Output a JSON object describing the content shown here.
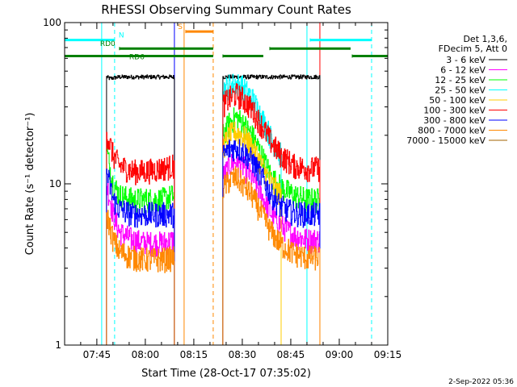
{
  "chart_data": {
    "type": "line",
    "title": "RHESSI Observing Summary Count Rates",
    "xlabel": "Start Time (28-Oct-17 07:35:02)",
    "ylabel": "Count Rate (s⁻¹ detector⁻¹)",
    "yscale": "log",
    "xlim": [
      "07:35:02",
      "09:15:00"
    ],
    "ylim": [
      1,
      100
    ],
    "x_ticks": [
      "07:45",
      "08:00",
      "08:15",
      "08:30",
      "08:45",
      "09:00",
      "09:15"
    ],
    "y_ticks": [
      "1",
      "10",
      "100"
    ],
    "grid": false,
    "legend_position": "top-right",
    "legend_header": [
      "Det 1,3,6,",
      "FDecim 5, Att 0"
    ],
    "footer_date": "2-Sep-2022 05:36",
    "series": [
      {
        "name": "3 - 6 keV",
        "color": "#000000",
        "segments": [
          {
            "x": [
              "07:48:00",
              "07:49:00",
              "07:52:00",
              "07:56:00",
              "08:00:00",
              "08:05:00",
              "08:09:00"
            ],
            "y": [
              46,
              45,
              46,
              46,
              46,
              46,
              46
            ]
          },
          {
            "x": [
              "08:24:00",
              "08:27:00",
              "08:30:00",
              "08:35:00",
              "08:40:00",
              "08:45:00",
              "08:50:00",
              "08:54:00"
            ],
            "y": [
              46,
              46,
              46,
              46,
              46,
              46,
              46,
              46
            ]
          }
        ]
      },
      {
        "name": "6 - 12 keV",
        "color": "#ff00ff",
        "segments": [
          {
            "x": [
              "07:48:00",
              "07:50:00",
              "07:52:00",
              "07:56:00",
              "08:00:00",
              "08:05:00",
              "08:09:00"
            ],
            "y": [
              10,
              6.5,
              5,
              4.5,
              4.3,
              4.3,
              4.5
            ]
          },
          {
            "x": [
              "08:24:00",
              "08:26:00",
              "08:28:00",
              "08:30:00",
              "08:33:00",
              "08:36:00",
              "08:39:00",
              "08:42:00",
              "08:46:00",
              "08:50:00",
              "08:54:00"
            ],
            "y": [
              11,
              13,
              14,
              13,
              11,
              8.5,
              6.5,
              5.5,
              4.8,
              4.5,
              4.5
            ]
          }
        ]
      },
      {
        "name": "12 - 25 keV",
        "color": "#00ff00",
        "segments": [
          {
            "x": [
              "07:48:00",
              "07:50:00",
              "07:52:00",
              "07:56:00",
              "08:00:00",
              "08:05:00",
              "08:09:00"
            ],
            "y": [
              16,
              10,
              8.5,
              8,
              8,
              8,
              8.5
            ]
          },
          {
            "x": [
              "08:24:00",
              "08:26:00",
              "08:28:00",
              "08:30:00",
              "08:33:00",
              "08:36:00",
              "08:39:00",
              "08:42:00",
              "08:46:00",
              "08:50:00",
              "08:54:00"
            ],
            "y": [
              20,
              24,
              26,
              24,
              20,
              15,
              11,
              9.5,
              8.5,
              8,
              8
            ]
          }
        ]
      },
      {
        "name": "25 - 50 keV",
        "color": "#00ffff",
        "segments": [
          {
            "x": [
              "08:24:00",
              "08:26:00",
              "08:28:00",
              "08:30:00",
              "08:33:00",
              "08:36:00",
              "08:39:00",
              "08:42:00"
            ],
            "y": [
              38,
              41,
              42,
              40,
              34,
              26,
              19,
              15
            ]
          }
        ]
      },
      {
        "name": "50 - 100 keV",
        "color": "#ffcc00",
        "segments": [
          {
            "x": [
              "08:24:00",
              "08:26:00",
              "08:28:00",
              "08:30:00",
              "08:33:00",
              "08:36:00",
              "08:39:00",
              "08:42:00"
            ],
            "y": [
              17,
              20,
              21,
              20,
              17,
              13,
              10,
              8.5
            ]
          }
        ]
      },
      {
        "name": "100 - 300 keV",
        "color": "#ff0000",
        "segments": [
          {
            "x": [
              "07:48:00",
              "07:50:00",
              "07:52:00",
              "07:56:00",
              "08:00:00",
              "08:05:00",
              "08:09:00"
            ],
            "y": [
              21,
              15,
              13,
              12,
              12,
              12.5,
              13
            ]
          },
          {
            "x": [
              "08:24:00",
              "08:26:00",
              "08:28:00",
              "08:30:00",
              "08:33:00",
              "08:36:00",
              "08:39:00",
              "08:42:00",
              "08:46:00",
              "08:50:00",
              "08:54:00"
            ],
            "y": [
              31,
              34,
              36,
              34,
              29,
              23,
              18,
              15,
              13,
              12.5,
              12.5
            ]
          }
        ]
      },
      {
        "name": "300 - 800 keV",
        "color": "#0000ff",
        "segments": [
          {
            "x": [
              "07:48:00",
              "07:50:00",
              "07:52:00",
              "07:56:00",
              "08:00:00",
              "08:05:00",
              "08:09:00"
            ],
            "y": [
              12,
              8,
              7,
              6.5,
              6.5,
              6.5,
              6.5
            ]
          },
          {
            "x": [
              "08:24:00",
              "08:26:00",
              "08:28:00",
              "08:30:00",
              "08:33:00",
              "08:36:00",
              "08:39:00",
              "08:42:00",
              "08:46:00",
              "08:50:00",
              "08:54:00"
            ],
            "y": [
              15,
              16.5,
              17,
              16,
              14,
              11,
              8.5,
              7.2,
              6.6,
              6.5,
              6.5
            ]
          }
        ]
      },
      {
        "name": "800 - 7000 keV",
        "color": "#ff8800",
        "segments": [
          {
            "x": [
              "07:48:00",
              "07:50:00",
              "07:52:00",
              "07:56:00",
              "08:00:00",
              "08:05:00",
              "08:09:00"
            ],
            "y": [
              6.5,
              4.5,
              3.8,
              3.5,
              3.4,
              3.4,
              3.5
            ]
          },
          {
            "x": [
              "08:24:00",
              "08:26:00",
              "08:28:00",
              "08:30:00",
              "08:33:00",
              "08:36:00",
              "08:39:00",
              "08:42:00",
              "08:46:00",
              "08:50:00",
              "08:54:00"
            ],
            "y": [
              9.5,
              10.5,
              11,
              10,
              8.5,
              6.5,
              5,
              4.2,
              3.7,
              3.5,
              3.5
            ]
          }
        ]
      },
      {
        "name": "7000 - 15000 keV",
        "color": "#a06000",
        "segments": []
      }
    ],
    "annotations": {
      "attenuator_ticks": [
        {
          "label": "N",
          "color": "#00ffff",
          "level": 78,
          "spans": [
            [
              "07:35:02",
              "07:50:30"
            ],
            [
              "08:51:00",
              "09:10:00"
            ]
          ]
        },
        {
          "label": "S",
          "color": "#ff8800",
          "level": 88,
          "spans": [
            [
              "08:12:30",
              "08:21:00"
            ]
          ]
        },
        {
          "label": "RD0",
          "color": "#008000",
          "level": 69,
          "spans": [
            [
              "07:52:00",
              "08:21:00"
            ],
            [
              "08:38:30",
              "09:03:30"
            ]
          ]
        },
        {
          "label": "RD6",
          "color": "#008000",
          "level": 62,
          "spans": [
            [
              "07:35:02",
              "08:21:00"
            ],
            [
              "08:24:00",
              "08:36:30"
            ],
            [
              "09:04:00",
              "09:15:00"
            ]
          ]
        }
      ],
      "vlines": [
        {
          "x": "07:46:30",
          "color": "#00ffff",
          "dash": false
        },
        {
          "x": "07:50:30",
          "color": "#00ffff",
          "dash": true
        },
        {
          "x": "08:09:00",
          "color": "#0000ff",
          "dash": false
        },
        {
          "x": "08:12:00",
          "color": "#ff8800",
          "dash": false
        },
        {
          "x": "08:21:00",
          "color": "#ff8800",
          "dash": true
        },
        {
          "x": "08:50:00",
          "color": "#00ffff",
          "dash": false
        },
        {
          "x": "08:54:00",
          "color": "#ff0000",
          "dash": false
        },
        {
          "x": "09:10:00",
          "color": "#00ffff",
          "dash": true
        }
      ]
    }
  }
}
